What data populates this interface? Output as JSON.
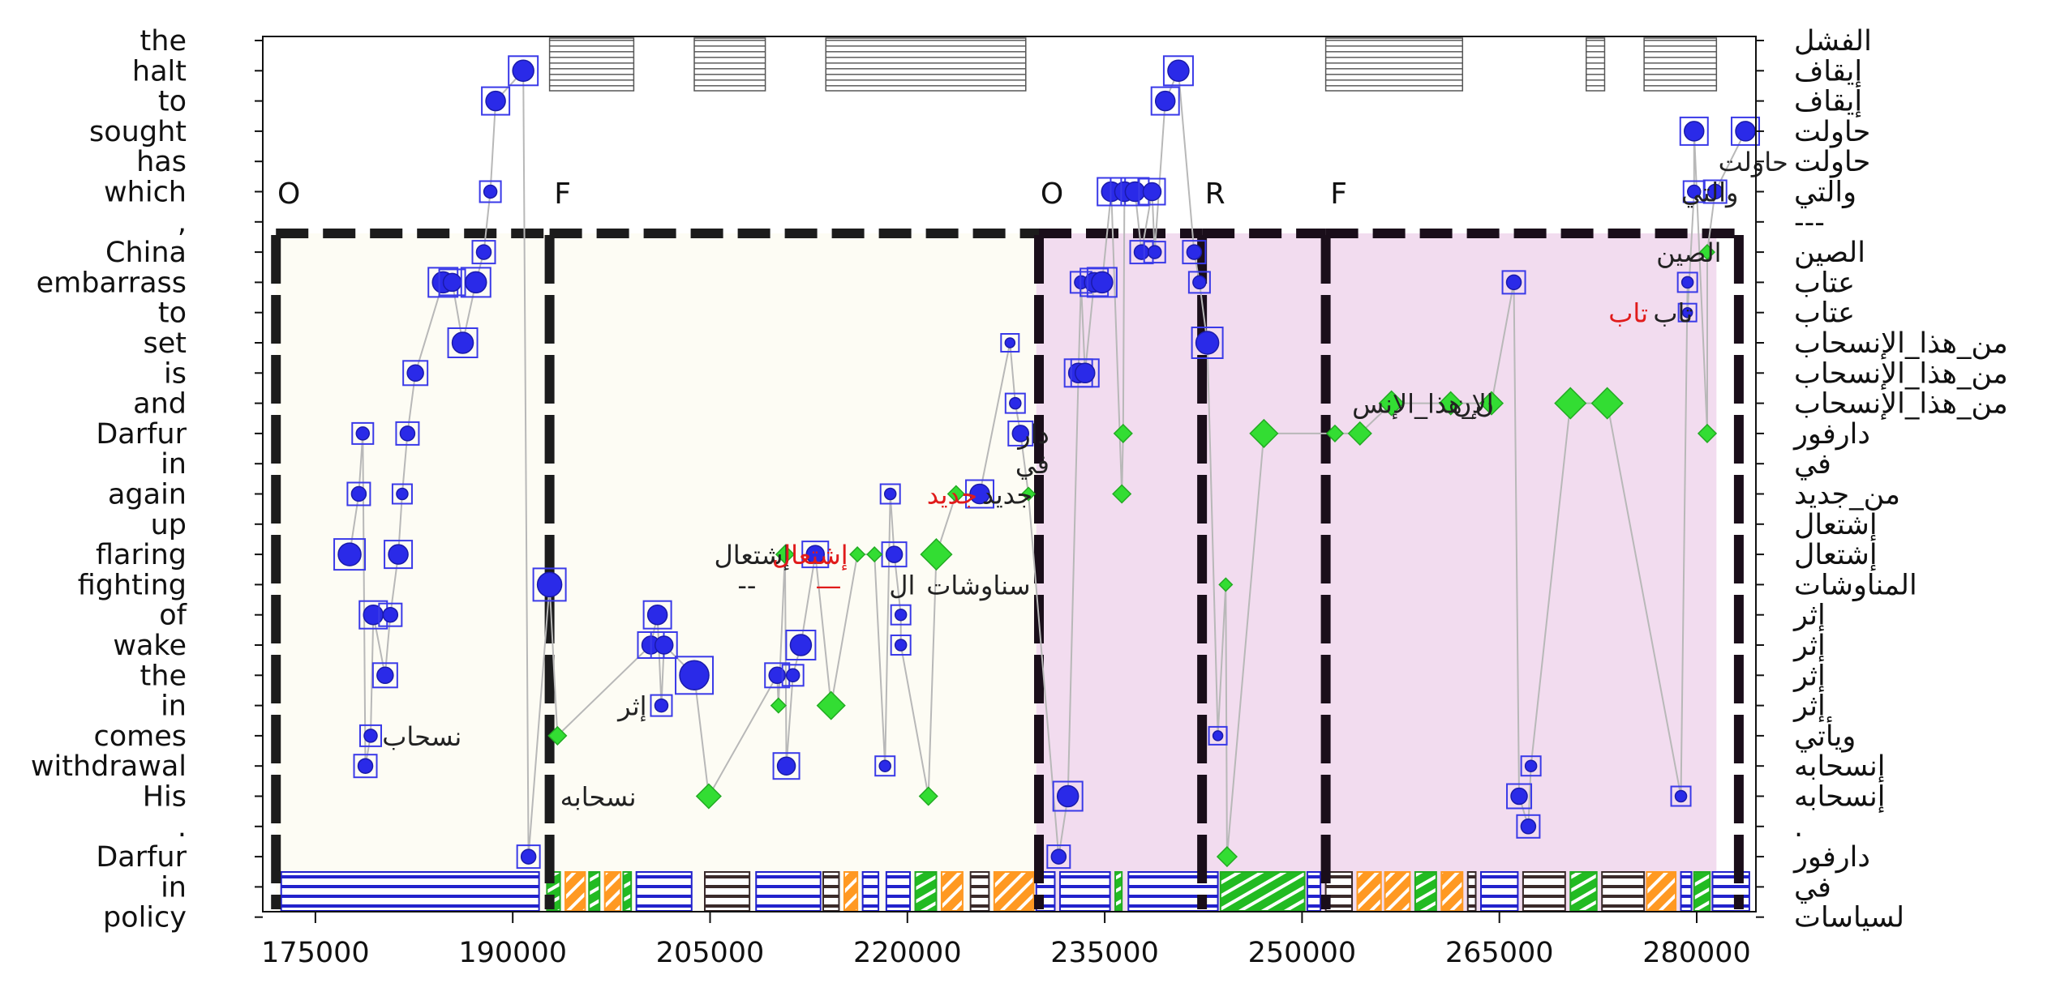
{
  "chart_data": {
    "type": "scatter",
    "title": "",
    "xlabel": "",
    "ylabel": "",
    "xlim": [
      171000,
      284500
    ],
    "x_ticks": [
      175000,
      190000,
      205000,
      220000,
      235000,
      250000,
      265000,
      280000
    ],
    "x_tick_labels": [
      "175000",
      "190000",
      "205000",
      "220000",
      "235000",
      "250000",
      "265000",
      "280000"
    ],
    "rows_en": [
      "the",
      "halt",
      "to",
      "sought",
      "has",
      "which",
      ",",
      "China",
      "embarrass",
      "to",
      "set",
      "is",
      "and",
      "Darfur",
      "in",
      "again",
      "up",
      "flaring",
      "fighting",
      "of",
      "wake",
      "the",
      "in",
      "comes",
      "withdrawal",
      "His",
      ".",
      "Darfur",
      "in",
      "policy"
    ],
    "rows_ar": [
      "الفشل",
      "إيقاف",
      "إيقاف",
      "حاولت",
      "حاولت",
      "والتي",
      "---",
      "الصين",
      "عتاب",
      "عتاب",
      "من_هذا_الإنسحاب",
      "من_هذا_الإنسحاب",
      "من_هذا_الإنسحاب",
      "دارفور",
      "في",
      "من_جديد",
      "إشتعال",
      "إشتعال",
      "المناوشات",
      "إثر",
      "إثر",
      "إثر",
      "إثر",
      "ويأتي",
      "إنسحابه",
      "إنسحابه",
      ".",
      "دارفور",
      "في",
      "لسياسات"
    ],
    "phases": [
      {
        "label": "O",
        "start": 172000,
        "end": 192800
      },
      {
        "label": "F",
        "start": 192800,
        "end": 230000
      },
      {
        "label": "O",
        "start": 230000,
        "end": 242400
      },
      {
        "label": "R",
        "start": 242400,
        "end": 251800
      },
      {
        "label": "F",
        "start": 251800,
        "end": 283200
      }
    ],
    "shaded_regions": [
      {
        "start": 172000,
        "end": 229800,
        "color": "#fdfcf4"
      },
      {
        "start": 229800,
        "end": 281500,
        "color": "#f2dcef"
      }
    ],
    "top_bars": [
      {
        "start": 192800,
        "end": 199200
      },
      {
        "start": 203800,
        "end": 209200
      },
      {
        "start": 213800,
        "end": 229000
      },
      {
        "start": 251800,
        "end": 262200
      },
      {
        "start": 271600,
        "end": 273000
      },
      {
        "start": 276000,
        "end": 281500
      }
    ],
    "blue_points": [
      {
        "x": 177600,
        "row": 17,
        "size": 14
      },
      {
        "x": 178300,
        "row": 15,
        "size": 9
      },
      {
        "x": 178600,
        "row": 13,
        "size": 8
      },
      {
        "x": 178800,
        "row": 24,
        "size": 9
      },
      {
        "x": 179200,
        "row": 23,
        "size": 8
      },
      {
        "x": 179400,
        "row": 19,
        "size": 12
      },
      {
        "x": 180300,
        "row": 21,
        "size": 10
      },
      {
        "x": 180700,
        "row": 19,
        "size": 9
      },
      {
        "x": 181300,
        "row": 17,
        "size": 12
      },
      {
        "x": 181600,
        "row": 15,
        "size": 7
      },
      {
        "x": 182000,
        "row": 13,
        "size": 9
      },
      {
        "x": 182600,
        "row": 11,
        "size": 10
      },
      {
        "x": 184700,
        "row": 8,
        "size": 13
      },
      {
        "x": 185400,
        "row": 8,
        "size": 11
      },
      {
        "x": 186200,
        "row": 10,
        "size": 13
      },
      {
        "x": 187200,
        "row": 8,
        "size": 13
      },
      {
        "x": 187800,
        "row": 7,
        "size": 9
      },
      {
        "x": 188300,
        "row": 5,
        "size": 8
      },
      {
        "x": 188700,
        "row": 2,
        "size": 12
      },
      {
        "x": 190800,
        "row": 1,
        "size": 13
      },
      {
        "x": 191200,
        "row": 27,
        "size": 9
      },
      {
        "x": 192800,
        "row": 18,
        "size": 15
      },
      {
        "x": 201000,
        "row": 19,
        "size": 12
      },
      {
        "x": 200500,
        "row": 20,
        "size": 11
      },
      {
        "x": 201500,
        "row": 20,
        "size": 11
      },
      {
        "x": 201300,
        "row": 22,
        "size": 8
      },
      {
        "x": 203800,
        "row": 21,
        "size": 18
      },
      {
        "x": 210100,
        "row": 21,
        "size": 10
      },
      {
        "x": 210800,
        "row": 24,
        "size": 11
      },
      {
        "x": 211300,
        "row": 21,
        "size": 8
      },
      {
        "x": 211900,
        "row": 20,
        "size": 13
      },
      {
        "x": 213000,
        "row": 17,
        "size": 11
      },
      {
        "x": 218300,
        "row": 24,
        "size": 7
      },
      {
        "x": 218700,
        "row": 15,
        "size": 7
      },
      {
        "x": 219000,
        "row": 17,
        "size": 10
      },
      {
        "x": 219500,
        "row": 19,
        "size": 7
      },
      {
        "x": 219500,
        "row": 20,
        "size": 7
      },
      {
        "x": 225500,
        "row": 15,
        "size": 12
      },
      {
        "x": 227800,
        "row": 10,
        "size": 6
      },
      {
        "x": 228200,
        "row": 12,
        "size": 7
      },
      {
        "x": 228600,
        "row": 13,
        "size": 10
      },
      {
        "x": 231500,
        "row": 27,
        "size": 9
      },
      {
        "x": 232200,
        "row": 25,
        "size": 13
      },
      {
        "x": 233000,
        "row": 11,
        "size": 12
      },
      {
        "x": 233500,
        "row": 11,
        "size": 12
      },
      {
        "x": 233200,
        "row": 8,
        "size": 8
      },
      {
        "x": 234200,
        "row": 8,
        "size": 12
      },
      {
        "x": 234800,
        "row": 8,
        "size": 13
      },
      {
        "x": 235500,
        "row": 5,
        "size": 12
      },
      {
        "x": 236500,
        "row": 5,
        "size": 12
      },
      {
        "x": 237300,
        "row": 5,
        "size": 12
      },
      {
        "x": 237800,
        "row": 7,
        "size": 9
      },
      {
        "x": 238800,
        "row": 7,
        "size": 8
      },
      {
        "x": 238600,
        "row": 5,
        "size": 11
      },
      {
        "x": 239600,
        "row": 2,
        "size": 12
      },
      {
        "x": 240600,
        "row": 1,
        "size": 13
      },
      {
        "x": 241800,
        "row": 7,
        "size": 9
      },
      {
        "x": 242200,
        "row": 8,
        "size": 8
      },
      {
        "x": 242800,
        "row": 10,
        "size": 14
      },
      {
        "x": 243600,
        "row": 23,
        "size": 6
      },
      {
        "x": 266100,
        "row": 8,
        "size": 9
      },
      {
        "x": 266500,
        "row": 25,
        "size": 10
      },
      {
        "x": 267200,
        "row": 26,
        "size": 9
      },
      {
        "x": 267400,
        "row": 24,
        "size": 7
      },
      {
        "x": 278800,
        "row": 25,
        "size": 7
      },
      {
        "x": 279300,
        "row": 8,
        "size": 7
      },
      {
        "x": 279300,
        "row": 9,
        "size": 6
      },
      {
        "x": 279800,
        "row": 5,
        "size": 8
      },
      {
        "x": 279800,
        "row": 3,
        "size": 12
      },
      {
        "x": 281400,
        "row": 5,
        "size": 9
      },
      {
        "x": 283700,
        "row": 3,
        "size": 12
      }
    ],
    "green_points": [
      {
        "x": 193400,
        "row": 23,
        "size": 8
      },
      {
        "x": 204900,
        "row": 25,
        "size": 12
      },
      {
        "x": 210200,
        "row": 22,
        "size": 6
      },
      {
        "x": 210700,
        "row": 17,
        "size": 8
      },
      {
        "x": 214200,
        "row": 22,
        "size": 14
      },
      {
        "x": 216200,
        "row": 17,
        "size": 6
      },
      {
        "x": 217500,
        "row": 17,
        "size": 6
      },
      {
        "x": 221600,
        "row": 25,
        "size": 8
      },
      {
        "x": 222200,
        "row": 17,
        "size": 16
      },
      {
        "x": 223700,
        "row": 15,
        "size": 7
      },
      {
        "x": 229200,
        "row": 15,
        "size": 5
      },
      {
        "x": 236400,
        "row": 13,
        "size": 8
      },
      {
        "x": 236300,
        "row": 15,
        "size": 8
      },
      {
        "x": 244300,
        "row": 27,
        "size": 9
      },
      {
        "x": 244200,
        "row": 18,
        "size": 5
      },
      {
        "x": 247100,
        "row": 13,
        "size": 14
      },
      {
        "x": 252500,
        "row": 13,
        "size": 7
      },
      {
        "x": 254400,
        "row": 13,
        "size": 11
      },
      {
        "x": 256800,
        "row": 12,
        "size": 12
      },
      {
        "x": 261300,
        "row": 12,
        "size": 11
      },
      {
        "x": 264400,
        "row": 12,
        "size": 11
      },
      {
        "x": 270400,
        "row": 12,
        "size": 16
      },
      {
        "x": 273200,
        "row": 12,
        "size": 16
      },
      {
        "x": 280800,
        "row": 13,
        "size": 8
      },
      {
        "x": 280800,
        "row": 7,
        "size": 6
      }
    ],
    "glyphs": [
      {
        "x": 183100,
        "row": 23,
        "text": "نسحاب",
        "color": "#222222"
      },
      {
        "x": 196500,
        "row": 25,
        "text": "نسحابه",
        "color": "#222222"
      },
      {
        "x": 199100,
        "row": 22,
        "text": "إثر",
        "color": "#222222"
      },
      {
        "x": 208200,
        "row": 17,
        "text": "إشتعال",
        "color": "#222222"
      },
      {
        "x": 207800,
        "row": 18,
        "text": "--",
        "color": "#222222"
      },
      {
        "x": 212600,
        "row": 17,
        "text": "إشتعال",
        "color": "#e01b1b"
      },
      {
        "x": 214000,
        "row": 18,
        "text": "—",
        "color": "#e01b1b"
      },
      {
        "x": 219600,
        "row": 18,
        "text": "ال",
        "color": "#222222"
      },
      {
        "x": 223400,
        "row": 15,
        "text": "جديد",
        "color": "#e01b1b"
      },
      {
        "x": 225400,
        "row": 18,
        "text": "سناوشات",
        "color": "#222222"
      },
      {
        "x": 227600,
        "row": 15,
        "text": "جديد",
        "color": "#222222"
      },
      {
        "x": 229500,
        "row": 14,
        "text": "في",
        "color": "#222222"
      },
      {
        "x": 229600,
        "row": 13,
        "text": "دار",
        "color": "#222222"
      },
      {
        "x": 259200,
        "row": 12,
        "text": "ن_هذا_الإنس",
        "color": "#222222"
      },
      {
        "x": 263000,
        "row": 12,
        "text": "الإن",
        "color": "#222222"
      },
      {
        "x": 274800,
        "row": 9,
        "text": "تاب",
        "color": "#e01b1b"
      },
      {
        "x": 278200,
        "row": 9,
        "text": "تاب",
        "color": "#222222"
      },
      {
        "x": 279400,
        "row": 7,
        "text": "الصين",
        "color": "#222222"
      },
      {
        "x": 281000,
        "row": 5,
        "text": "والتي",
        "color": "#222222"
      },
      {
        "x": 284300,
        "row": 4,
        "text": "حاولت",
        "color": "#222222"
      }
    ],
    "bottom_segments": [
      {
        "start": 172400,
        "end": 192000,
        "fill": "blue_lines"
      },
      {
        "start": 192600,
        "end": 193600,
        "fill": "green_hatch"
      },
      {
        "start": 194000,
        "end": 195500,
        "fill": "orange_hatch"
      },
      {
        "start": 195800,
        "end": 196600,
        "fill": "green_hatch"
      },
      {
        "start": 197000,
        "end": 198200,
        "fill": "orange_hatch"
      },
      {
        "start": 198400,
        "end": 199000,
        "fill": "green_hatch"
      },
      {
        "start": 199400,
        "end": 203600,
        "fill": "blue_lines"
      },
      {
        "start": 204600,
        "end": 208000,
        "fill": "dark_lines"
      },
      {
        "start": 208500,
        "end": 213400,
        "fill": "blue_lines"
      },
      {
        "start": 213600,
        "end": 214800,
        "fill": "dark_lines"
      },
      {
        "start": 215200,
        "end": 216200,
        "fill": "orange_hatch"
      },
      {
        "start": 216600,
        "end": 217800,
        "fill": "blue_lines"
      },
      {
        "start": 218400,
        "end": 220200,
        "fill": "blue_lines"
      },
      {
        "start": 220600,
        "end": 222200,
        "fill": "green_hatch"
      },
      {
        "start": 222600,
        "end": 224200,
        "fill": "orange_hatch"
      },
      {
        "start": 224800,
        "end": 226200,
        "fill": "dark_lines"
      },
      {
        "start": 226600,
        "end": 229600,
        "fill": "orange_hatch"
      },
      {
        "start": 229800,
        "end": 231200,
        "fill": "blue_lines"
      },
      {
        "start": 231600,
        "end": 235400,
        "fill": "blue_lines"
      },
      {
        "start": 235800,
        "end": 236300,
        "fill": "green_hatch"
      },
      {
        "start": 236800,
        "end": 243600,
        "fill": "blue_lines"
      },
      {
        "start": 243800,
        "end": 250200,
        "fill": "green_hatch"
      },
      {
        "start": 250400,
        "end": 251400,
        "fill": "blue_lines"
      },
      {
        "start": 251800,
        "end": 253800,
        "fill": "dark_lines"
      },
      {
        "start": 254200,
        "end": 256000,
        "fill": "orange_hatch"
      },
      {
        "start": 256300,
        "end": 258200,
        "fill": "orange_hatch"
      },
      {
        "start": 258600,
        "end": 260200,
        "fill": "green_hatch"
      },
      {
        "start": 260600,
        "end": 262200,
        "fill": "orange_hatch"
      },
      {
        "start": 262600,
        "end": 263200,
        "fill": "dark_lines"
      },
      {
        "start": 263600,
        "end": 266400,
        "fill": "blue_lines"
      },
      {
        "start": 266800,
        "end": 270000,
        "fill": "dark_lines"
      },
      {
        "start": 270400,
        "end": 272400,
        "fill": "green_hatch"
      },
      {
        "start": 272800,
        "end": 276000,
        "fill": "dark_lines"
      },
      {
        "start": 276200,
        "end": 278400,
        "fill": "orange_hatch"
      },
      {
        "start": 278800,
        "end": 279600,
        "fill": "blue_lines"
      },
      {
        "start": 279800,
        "end": 281000,
        "fill": "green_hatch"
      },
      {
        "start": 281200,
        "end": 284000,
        "fill": "blue_lines"
      }
    ]
  }
}
